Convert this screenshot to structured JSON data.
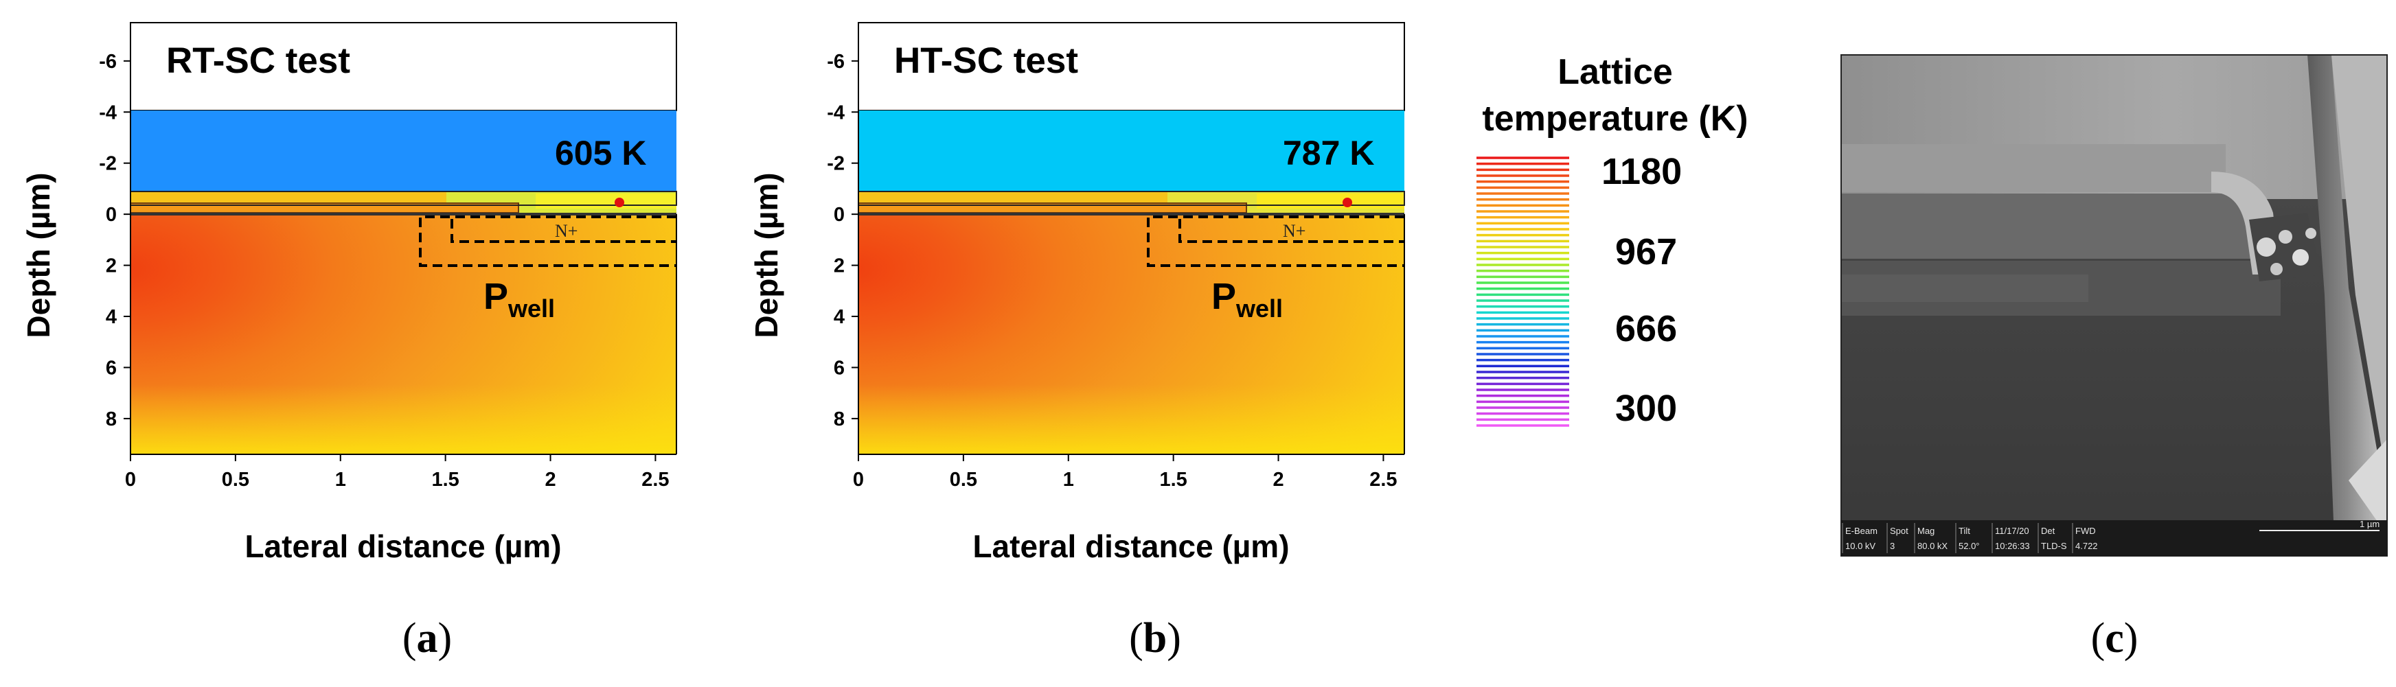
{
  "panels": [
    {
      "id": "a",
      "title": "RT-SC test",
      "hotspot_label": "605 K",
      "nplus_label": "N+",
      "pwell_main": "P",
      "pwell_sub": "well",
      "subfig_open": "(",
      "subfig_letter": "a",
      "subfig_close": ")",
      "oxide_color": "#1e90ff",
      "substrate_color": "#f29a1a"
    },
    {
      "id": "b",
      "title": "HT-SC test",
      "hotspot_label": "787 K",
      "nplus_label": "N+",
      "pwell_main": "P",
      "pwell_sub": "well",
      "subfig_open": "(",
      "subfig_letter": "b",
      "subfig_close": ")",
      "oxide_color": "#00c8f8",
      "substrate_color": "#f29a1a"
    }
  ],
  "axes": {
    "xlabel": "Lateral distance (µm)",
    "ylabel": "Depth (µm)",
    "xticks": [
      "0",
      "0.5",
      "1",
      "1.5",
      "2",
      "2.5"
    ],
    "xtick_values": [
      0,
      0.5,
      1,
      1.5,
      2,
      2.5
    ],
    "yticks": [
      "-6",
      "-4",
      "-2",
      "0",
      "2",
      "4",
      "6",
      "8"
    ],
    "ytick_values": [
      -6,
      -4,
      -2,
      0,
      2,
      4,
      6,
      8
    ],
    "xlim": [
      0,
      2.6
    ],
    "ylim": [
      -7.5,
      9.4
    ]
  },
  "colorbar": {
    "title_line1": "Lattice",
    "title_line2": "temperature (K)",
    "ticks": [
      "1180",
      "967",
      "666",
      "300"
    ],
    "tick_values": [
      1180,
      967,
      666,
      300
    ]
  },
  "sem": {
    "headers": [
      "E-Beam",
      "Spot",
      "Mag",
      "Tilt",
      "11/17/20",
      "Det",
      "FWD"
    ],
    "values": [
      "10.0 kV",
      "3",
      "80.0 kX",
      "52.0°",
      "10:26:33",
      "TLD-S",
      "4.722"
    ],
    "scale_label": "1 µm",
    "subfig_open": "(",
    "subfig_letter": "c",
    "subfig_close": ")"
  }
}
